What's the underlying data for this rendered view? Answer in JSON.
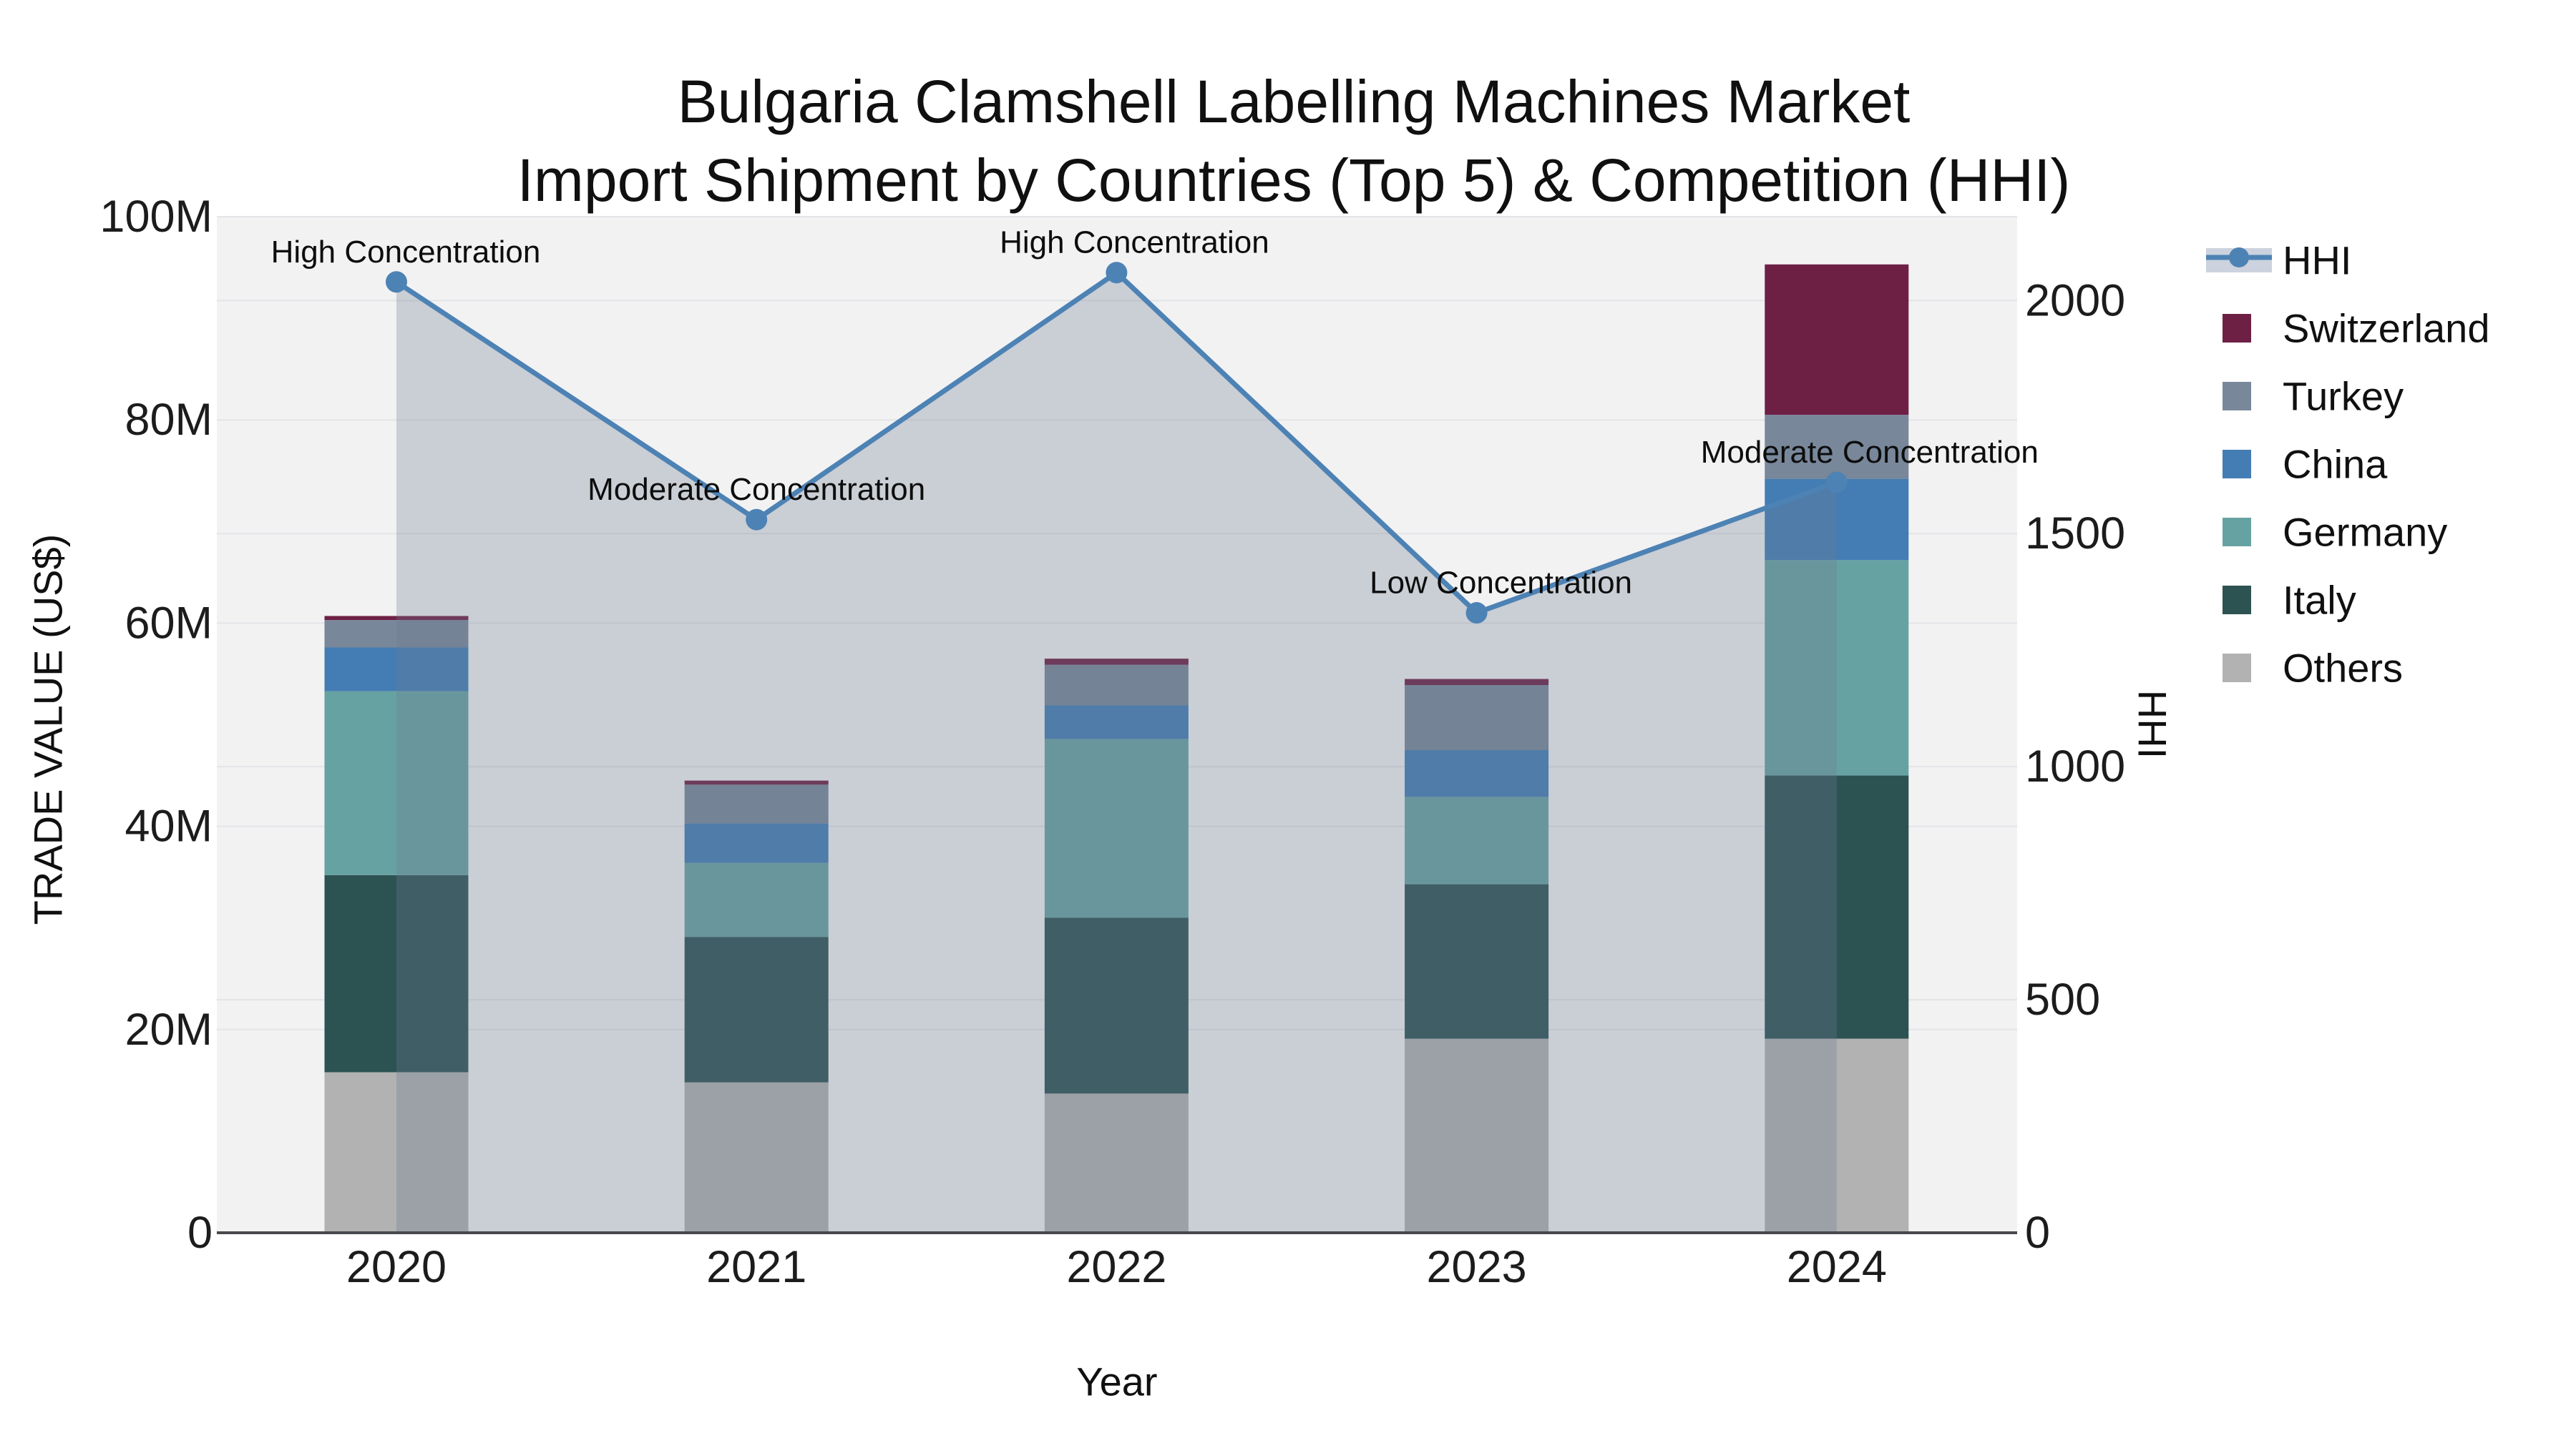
{
  "title": {
    "line1": "Bulgaria Clamshell Labelling Machines Market",
    "line2": "Import Shipment by Countries (Top 5) & Competition (HHI)"
  },
  "axes": {
    "left": {
      "title": "TRADE VALUE (US$)",
      "tick_labels": [
        "0",
        "20M",
        "40M",
        "60M",
        "80M",
        "100M"
      ],
      "tick_values": [
        0,
        20,
        40,
        60,
        80,
        100
      ],
      "range": [
        0,
        100
      ]
    },
    "right": {
      "title": "HHI",
      "tick_labels": [
        "0",
        "500",
        "1000",
        "1500",
        "2000"
      ],
      "tick_values": [
        0,
        500,
        1000,
        1500,
        2000
      ],
      "range": [
        0,
        2180
      ]
    },
    "x": {
      "title": "Year"
    }
  },
  "chart_data": {
    "type": "combo (stacked bar + line, dual axis)",
    "categories": [
      "2020",
      "2021",
      "2022",
      "2023",
      "2024"
    ],
    "bar_value_unit": "US$ millions (left axis)",
    "series": [
      {
        "name": "Others",
        "color": "#b1b2b1",
        "values": [
          15.8,
          14.8,
          13.7,
          19.1,
          19.1
        ]
      },
      {
        "name": "Italy",
        "color": "#2d5252",
        "values": [
          19.4,
          14.3,
          17.3,
          15.2,
          25.9
        ]
      },
      {
        "name": "Germany",
        "color": "#67a2a2",
        "values": [
          18.1,
          7.3,
          17.6,
          8.6,
          21.2
        ]
      },
      {
        "name": "China",
        "color": "#437db3",
        "values": [
          4.3,
          3.9,
          3.3,
          4.6,
          8.0
        ]
      },
      {
        "name": "Turkey",
        "color": "#79879a",
        "values": [
          2.7,
          3.8,
          4.0,
          6.4,
          6.3
        ]
      },
      {
        "name": "Switzerland",
        "color": "#6e2044",
        "values": [
          0.4,
          0.4,
          0.6,
          0.6,
          14.8
        ]
      }
    ],
    "line": {
      "name": "HHI",
      "axis": "right",
      "color": "#4d82b4",
      "area_fill": "rgba(108,122,146,0.30)",
      "values": [
        2040,
        1530,
        2060,
        1330,
        1610
      ]
    },
    "annotations": [
      "High Concentration",
      "Moderate Concentration",
      "High Concentration",
      "Low Concentration",
      "Moderate Concentration"
    ],
    "layout_hints": {
      "grid": "both axes, light",
      "legend_position": "right",
      "plot_background": "#f2f2f3"
    }
  },
  "colors": {
    "plot_bg": "#f2f2f3",
    "gridline": "#e3e4e7",
    "axis_line": "#47494d",
    "hhi_line": "#4d82b4",
    "area_fill": "rgba(108,122,146,0.30)",
    "legend_area_swatch": "#ccd3de"
  }
}
